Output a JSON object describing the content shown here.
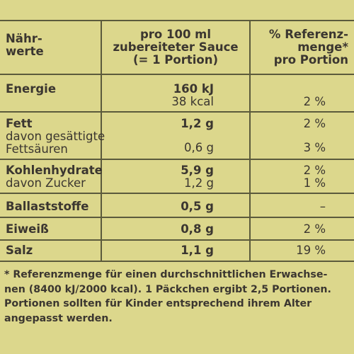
{
  "header": {
    "col1_line1": "Nähr-",
    "col1_line2": "werte",
    "col2_line1": "pro 100 ml",
    "col2_line2": "zubereiteter Sauce",
    "col2_line3": "(= 1 Portion)",
    "col3_line1": "% Referenz-",
    "col3_line2": "menge*",
    "col3_line3": "pro Portion"
  },
  "rows": [
    {
      "name": "Energie",
      "value1": "160 kJ",
      "value2": "38 kcal",
      "pct": "2 %"
    },
    {
      "name": "Fett",
      "value": "1,2 g",
      "pct": "2 %"
    },
    {
      "name": "davon gesättigte",
      "name2": "Fettsäuren",
      "value": "0,6 g",
      "pct": "3 %"
    },
    {
      "name": "Kohlenhydrate",
      "value": "5,9 g",
      "pct": "2 %"
    },
    {
      "name": "davon Zucker",
      "value": "1,2 g",
      "pct": "1 %"
    },
    {
      "name": "Ballaststoffe",
      "value": "0,5 g",
      "pct": "–"
    },
    {
      "name": "Eiweiß",
      "value": "0,8 g",
      "pct": "2 %"
    },
    {
      "name": "Salz",
      "value": "1,1 g",
      "pct": "19 %"
    }
  ],
  "footnote": {
    "line1": "* Referenzmenge für einen durchschnittlichen Erwachse-",
    "line2": "nen (8400 kJ/2000 kcal). 1 Päckchen ergibt 2,5 Portionen.",
    "line3": "Portionen sollten für Kinder entsprechend ihrem Alter",
    "line4": "angepasst werden."
  }
}
